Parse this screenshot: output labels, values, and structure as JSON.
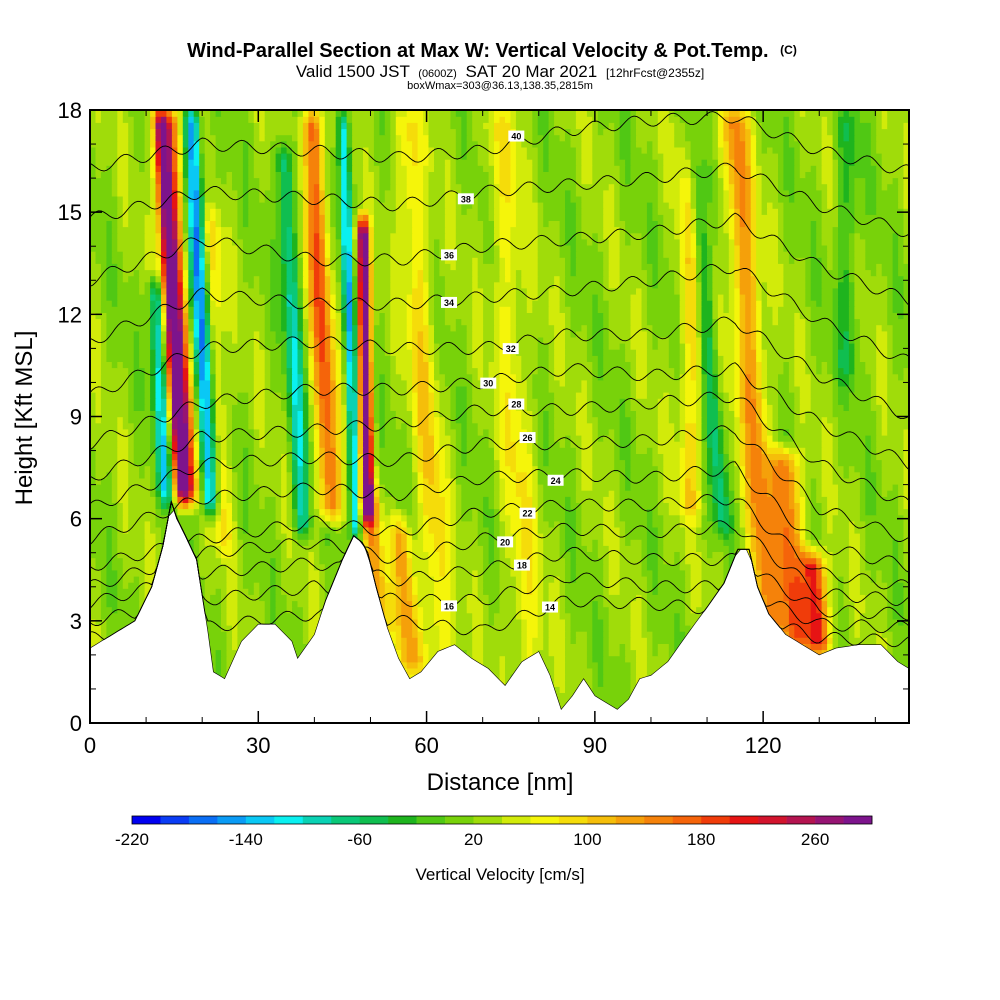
{
  "chart_data": {
    "type": "heatmap",
    "title": "Wind-Parallel Section at Max W: Vertical Velocity & Pot.Temp.",
    "title_mark": "(C)",
    "subtitle_main_a": "Valid 1500 JST",
    "subtitle_small_a": "(0600Z)",
    "subtitle_main_b": "SAT 20 Mar 2021",
    "subtitle_small_b": "[12hrFcst@2355z]",
    "subtitle_line2": "boxWmax=303@36.13,138.35,2815m",
    "xlabel": "Distance [nm]",
    "ylabel": "Height [Kft MSL]",
    "xlim": [
      0,
      146
    ],
    "ylim": [
      0,
      18
    ],
    "x_ticks": [
      0,
      30,
      60,
      90,
      120
    ],
    "y_ticks": [
      0,
      3,
      6,
      9,
      12,
      15,
      18
    ],
    "colorbar": {
      "label": "Vertical Velocity [cm/s]",
      "tick_labels": [
        "-220",
        "-140",
        "-60",
        "20",
        "100",
        "180",
        "260"
      ],
      "tick_values": [
        -220,
        -140,
        -60,
        20,
        100,
        180,
        260
      ],
      "range": [
        -220,
        300
      ],
      "colors": [
        "#0000f0",
        "#0a3cf5",
        "#0a6ef5",
        "#0a9bf5",
        "#0ac8f5",
        "#0af0f0",
        "#0ad2b4",
        "#0ac878",
        "#10be50",
        "#1eb41e",
        "#50c814",
        "#78d20a",
        "#a0dc0a",
        "#d2eb0a",
        "#f5f50a",
        "#f5dc0a",
        "#f5be0a",
        "#f5a00a",
        "#f5820a",
        "#f5640a",
        "#f03c0a",
        "#e61414",
        "#d2142d",
        "#b41450",
        "#961473",
        "#7d148c"
      ]
    },
    "terrain_kft": [
      [
        0,
        2.2
      ],
      [
        4,
        2.6
      ],
      [
        8,
        3.0
      ],
      [
        11,
        4.0
      ],
      [
        13,
        5.2
      ],
      [
        14.5,
        6.5
      ],
      [
        15.5,
        6.0
      ],
      [
        17,
        5.5
      ],
      [
        19,
        4.8
      ],
      [
        21,
        2.7
      ],
      [
        22,
        1.5
      ],
      [
        24,
        1.3
      ],
      [
        27,
        2.4
      ],
      [
        30,
        2.9
      ],
      [
        33,
        2.9
      ],
      [
        36,
        2.4
      ],
      [
        37,
        1.9
      ],
      [
        40,
        2.6
      ],
      [
        42,
        3.6
      ],
      [
        45,
        4.8
      ],
      [
        47,
        5.5
      ],
      [
        48.5,
        5.3
      ],
      [
        49.5,
        5.0
      ],
      [
        51,
        4.0
      ],
      [
        53,
        2.8
      ],
      [
        55,
        1.9
      ],
      [
        57,
        1.3
      ],
      [
        59,
        1.5
      ],
      [
        62,
        2.1
      ],
      [
        65,
        2.3
      ],
      [
        68,
        1.9
      ],
      [
        71,
        1.6
      ],
      [
        74,
        1.1
      ],
      [
        77,
        1.8
      ],
      [
        80,
        2.1
      ],
      [
        82,
        1.4
      ],
      [
        84,
        0.4
      ],
      [
        86,
        0.8
      ],
      [
        88,
        1.3
      ],
      [
        90,
        0.8
      ],
      [
        92,
        0.6
      ],
      [
        94,
        0.4
      ],
      [
        96,
        0.7
      ],
      [
        98,
        1.3
      ],
      [
        100,
        1.4
      ],
      [
        103,
        1.8
      ],
      [
        106,
        2.5
      ],
      [
        110,
        3.4
      ],
      [
        113,
        4.1
      ],
      [
        115.5,
        5.1
      ],
      [
        117.5,
        5.1
      ],
      [
        119,
        4.0
      ],
      [
        121,
        3.2
      ],
      [
        124,
        2.6
      ],
      [
        127,
        2.3
      ],
      [
        130,
        2.0
      ],
      [
        133,
        2.2
      ],
      [
        137,
        2.3
      ],
      [
        141,
        2.3
      ],
      [
        144,
        1.8
      ],
      [
        146,
        1.6
      ]
    ],
    "velocity_bands": [
      {
        "x": 16.5,
        "value": 260,
        "width": 1.4,
        "slope": -0.35,
        "bottom": 6.5,
        "top": 18
      },
      {
        "x": 18.0,
        "value": 140,
        "width": 1.6,
        "slope": -0.35,
        "bottom": 6.5,
        "top": 18
      },
      {
        "x": 21.5,
        "value": -180,
        "width": 1.4,
        "slope": -0.3,
        "bottom": 6.2,
        "top": 18
      },
      {
        "x": 13.5,
        "value": -130,
        "width": 1.3,
        "slope": -0.3,
        "bottom": 6.5,
        "top": 13
      },
      {
        "x": 24.0,
        "value": 60,
        "width": 1.5,
        "slope": -0.25,
        "bottom": 5.0,
        "top": 15
      },
      {
        "x": 43.0,
        "value": 150,
        "width": 2.0,
        "slope": -0.3,
        "bottom": 6.0,
        "top": 18
      },
      {
        "x": 38.0,
        "value": -110,
        "width": 1.5,
        "slope": -0.3,
        "bottom": 5.5,
        "top": 17
      },
      {
        "x": 49.5,
        "value": 290,
        "width": 1.1,
        "slope": -0.1,
        "bottom": 6.0,
        "top": 14.8
      },
      {
        "x": 47.5,
        "value": -150,
        "width": 1.0,
        "slope": -0.2,
        "bottom": 5.5,
        "top": 18
      },
      {
        "x": 52.0,
        "value": 100,
        "width": 1.8,
        "slope": -0.55,
        "bottom": 2.5,
        "top": 7
      },
      {
        "x": 57.5,
        "value": 110,
        "width": 2.0,
        "slope": -0.5,
        "bottom": 1.5,
        "top": 6
      },
      {
        "x": 63.0,
        "value": 70,
        "width": 2.5,
        "slope": -0.4,
        "bottom": 1.5,
        "top": 18
      },
      {
        "x": 78.0,
        "value": 50,
        "width": 3.0,
        "slope": -0.3,
        "bottom": 1.5,
        "top": 18
      },
      {
        "x": 107.0,
        "value": 70,
        "width": 2.0,
        "slope": 0.0,
        "bottom": 6.0,
        "top": 18
      },
      {
        "x": 113.0,
        "value": -80,
        "width": 1.5,
        "slope": -0.5,
        "bottom": 5.5,
        "top": 18
      },
      {
        "x": 121.0,
        "value": 120,
        "width": 2.5,
        "slope": -0.4,
        "bottom": 2.5,
        "top": 18
      },
      {
        "x": 126.0,
        "value": 150,
        "width": 2.5,
        "slope": -0.4,
        "bottom": 2.2,
        "top": 8
      },
      {
        "x": 130.0,
        "value": 200,
        "width": 2.0,
        "slope": -0.4,
        "bottom": 2.0,
        "top": 5
      },
      {
        "x": 135.0,
        "value": -50,
        "width": 2.0,
        "slope": 0.0,
        "bottom": 10.0,
        "top": 18
      }
    ],
    "isentropes": [
      {
        "level": 14,
        "heights": [
          [
            0,
            2.5
          ],
          [
            20,
            2.8
          ],
          [
            40,
            3.2
          ],
          [
            55,
            3.0
          ],
          [
            70,
            2.7
          ],
          [
            85,
            3.6
          ],
          [
            100,
            3.5
          ],
          [
            115,
            3.3
          ],
          [
            130,
            2.5
          ],
          [
            146,
            2.4
          ]
        ],
        "label_x": 82
      },
      {
        "level": 16,
        "heights": [
          [
            0,
            3.0
          ],
          [
            20,
            3.6
          ],
          [
            40,
            4.0
          ],
          [
            55,
            3.6
          ],
          [
            70,
            3.6
          ],
          [
            85,
            4.3
          ],
          [
            100,
            4.0
          ],
          [
            115,
            4.0
          ],
          [
            130,
            2.9
          ],
          [
            146,
            2.8
          ]
        ],
        "label_x": 64
      },
      {
        "level": 18,
        "heights": [
          [
            0,
            3.5
          ],
          [
            20,
            4.4
          ],
          [
            40,
            4.7
          ],
          [
            55,
            4.2
          ],
          [
            70,
            4.5
          ],
          [
            85,
            5.0
          ],
          [
            100,
            4.8
          ],
          [
            115,
            4.8
          ],
          [
            130,
            3.3
          ],
          [
            146,
            3.2
          ]
        ],
        "label_x": 77
      },
      {
        "level": 20,
        "heights": [
          [
            0,
            4.0
          ],
          [
            20,
            5.0
          ],
          [
            40,
            5.3
          ],
          [
            55,
            4.8
          ],
          [
            70,
            5.4
          ],
          [
            85,
            5.7
          ],
          [
            100,
            5.6
          ],
          [
            115,
            5.8
          ],
          [
            130,
            3.8
          ],
          [
            146,
            3.6
          ]
        ],
        "label_x": 74
      },
      {
        "level": 22,
        "heights": [
          [
            0,
            4.6
          ],
          [
            20,
            5.4
          ],
          [
            40,
            5.9
          ],
          [
            55,
            5.6
          ],
          [
            70,
            6.2
          ],
          [
            85,
            6.4
          ],
          [
            100,
            6.4
          ],
          [
            115,
            6.6
          ],
          [
            130,
            4.4
          ],
          [
            146,
            4.0
          ]
        ],
        "label_x": 78
      },
      {
        "level": 24,
        "heights": [
          [
            0,
            5.4
          ],
          [
            20,
            6.6
          ],
          [
            40,
            6.9
          ],
          [
            55,
            6.7
          ],
          [
            70,
            7.2
          ],
          [
            85,
            7.3
          ],
          [
            100,
            7.2
          ],
          [
            115,
            7.5
          ],
          [
            130,
            5.2
          ],
          [
            146,
            4.6
          ]
        ],
        "label_x": 83
      },
      {
        "level": 26,
        "heights": [
          [
            0,
            6.3
          ],
          [
            20,
            7.6
          ],
          [
            40,
            7.8
          ],
          [
            55,
            7.7
          ],
          [
            70,
            8.2
          ],
          [
            85,
            8.2
          ],
          [
            100,
            8.3
          ],
          [
            115,
            8.6
          ],
          [
            130,
            6.3
          ],
          [
            146,
            5.4
          ]
        ],
        "label_x": 78
      },
      {
        "level": 28,
        "heights": [
          [
            0,
            7.2
          ],
          [
            20,
            8.4
          ],
          [
            40,
            8.6
          ],
          [
            55,
            8.8
          ],
          [
            70,
            9.2
          ],
          [
            85,
            9.2
          ],
          [
            100,
            9.4
          ],
          [
            115,
            9.6
          ],
          [
            130,
            7.6
          ],
          [
            146,
            6.4
          ]
        ],
        "label_x": 76
      },
      {
        "level": 30,
        "heights": [
          [
            0,
            8.2
          ],
          [
            20,
            9.4
          ],
          [
            40,
            9.8
          ],
          [
            55,
            9.8
          ],
          [
            70,
            10.0
          ],
          [
            85,
            10.4
          ],
          [
            100,
            10.2
          ],
          [
            115,
            10.4
          ],
          [
            130,
            8.8
          ],
          [
            146,
            7.6
          ]
        ],
        "label_x": 71
      },
      {
        "level": 32,
        "heights": [
          [
            0,
            9.6
          ],
          [
            20,
            11.0
          ],
          [
            40,
            11.2
          ],
          [
            55,
            11.0
          ],
          [
            70,
            11.0
          ],
          [
            85,
            11.4
          ],
          [
            100,
            11.4
          ],
          [
            115,
            11.8
          ],
          [
            130,
            10.2
          ],
          [
            146,
            9.0
          ]
        ],
        "label_x": 75
      },
      {
        "level": 34,
        "heights": [
          [
            0,
            11.2
          ],
          [
            20,
            12.6
          ],
          [
            40,
            12.3
          ],
          [
            55,
            12.3
          ],
          [
            70,
            12.5
          ],
          [
            85,
            12.7
          ],
          [
            100,
            13.0
          ],
          [
            115,
            13.4
          ],
          [
            130,
            11.8
          ],
          [
            146,
            10.6
          ]
        ],
        "label_x": 64
      },
      {
        "level": 36,
        "heights": [
          [
            0,
            13.0
          ],
          [
            20,
            14.2
          ],
          [
            40,
            13.6
          ],
          [
            55,
            13.6
          ],
          [
            70,
            14.0
          ],
          [
            85,
            14.2
          ],
          [
            100,
            14.4
          ],
          [
            115,
            14.8
          ],
          [
            130,
            13.4
          ],
          [
            146,
            12.4
          ]
        ],
        "label_x": 64
      },
      {
        "level": 38,
        "heights": [
          [
            0,
            14.8
          ],
          [
            20,
            15.6
          ],
          [
            40,
            15.4
          ],
          [
            55,
            15.2
          ],
          [
            70,
            15.6
          ],
          [
            85,
            15.8
          ],
          [
            100,
            16.0
          ],
          [
            115,
            16.3
          ],
          [
            130,
            15.2
          ],
          [
            146,
            14.4
          ]
        ],
        "label_x": 67
      },
      {
        "level": 40,
        "heights": [
          [
            0,
            16.3
          ],
          [
            20,
            17.0
          ],
          [
            40,
            16.8
          ],
          [
            55,
            16.6
          ],
          [
            70,
            16.8
          ],
          [
            85,
            17.4
          ],
          [
            100,
            17.7
          ],
          [
            115,
            17.8
          ],
          [
            130,
            16.8
          ],
          [
            146,
            16.2
          ]
        ],
        "label_x": 76
      }
    ]
  }
}
